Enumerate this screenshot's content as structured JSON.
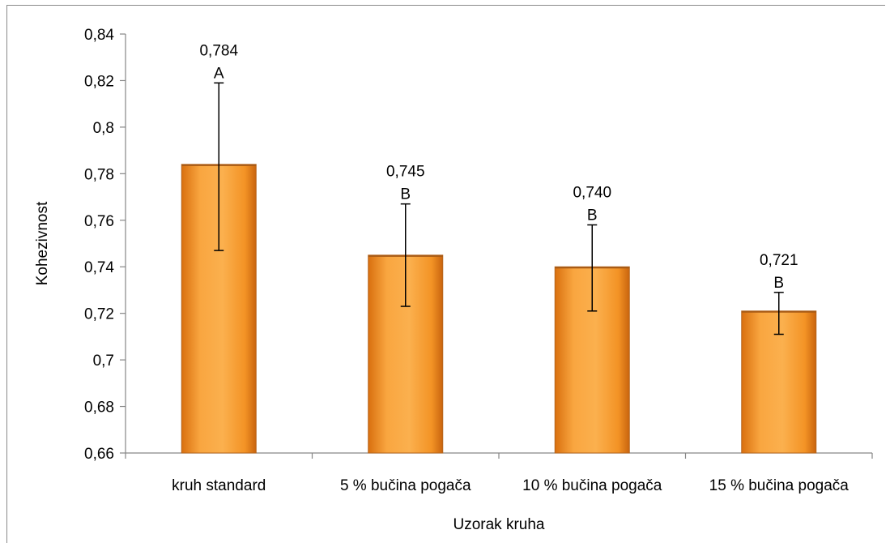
{
  "chart_data": {
    "type": "bar",
    "title": "",
    "xlabel": "Uzorak kruha",
    "ylabel": "Kohezivnost",
    "categories": [
      "kruh standard",
      "5 % bučina pogača",
      "10 % bučina pogača",
      "15 % bučina pogača"
    ],
    "values": [
      0.784,
      0.745,
      0.74,
      0.721
    ],
    "value_labels": [
      "0,784",
      "0,745",
      "0,740",
      "0,721"
    ],
    "significance_letters": [
      "A",
      "B",
      "B",
      "B"
    ],
    "error_bars": [
      {
        "low": 0.747,
        "high": 0.819
      },
      {
        "low": 0.723,
        "high": 0.767
      },
      {
        "low": 0.721,
        "high": 0.758
      },
      {
        "low": 0.711,
        "high": 0.729
      }
    ],
    "ylim": [
      0.66,
      0.84
    ],
    "yticks": [
      0.66,
      0.68,
      0.7,
      0.72,
      0.74,
      0.76,
      0.78,
      0.8,
      0.82,
      0.84
    ],
    "ytick_labels": [
      "0,66",
      "0,68",
      "0,7",
      "0,72",
      "0,74",
      "0,76",
      "0,78",
      "0,8",
      "0,82",
      "0,84"
    ],
    "grid": false,
    "legend": "none",
    "bar_color": "#f7941d",
    "bar_edge_color": "#b5651d"
  }
}
